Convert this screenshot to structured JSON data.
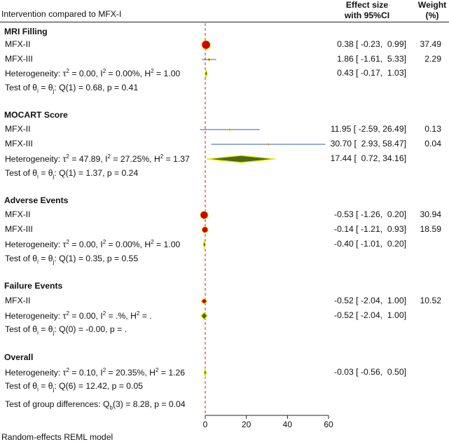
{
  "header": {
    "left": "Intervention compared to MFX-I",
    "effect_line1": "Effect size",
    "effect_line2": "with 95%CI",
    "weight_line1": "Weight",
    "weight_line2": "(%)"
  },
  "rows": [
    {
      "type": "group",
      "label": "MRI Filling"
    },
    {
      "type": "study",
      "label": "MFX-II",
      "es": "0.38 [ -0.23,  0.99]",
      "weight": "37.49"
    },
    {
      "type": "study",
      "label": "MFX-III",
      "es": "1.86 [ -1.61,  5.33]",
      "weight": "2.29"
    },
    {
      "type": "het",
      "label": "Heterogeneity: τ² = 0.00, I² = 0.00%, H² = 1.00",
      "es": "0.43 [ -0.17,  1.03]"
    },
    {
      "type": "test",
      "label": "Test of θi = θj: Q(1) = 0.68, p = 0.41"
    },
    {
      "type": "group",
      "label": "MOCART Score"
    },
    {
      "type": "study",
      "label": "MFX-II",
      "es": "11.95 [ -2.59, 26.49]",
      "weight": "0.13"
    },
    {
      "type": "study",
      "label": "MFX-III",
      "es": "30.70 [  2.93, 58.47]",
      "weight": "0.04"
    },
    {
      "type": "het",
      "label": "Heterogeneity: τ² = 47.89, I² = 27.25%, H² = 1.37",
      "es": "17.44 [  0.72, 34.16]"
    },
    {
      "type": "test",
      "label": "Test of θi = θj: Q(1) = 1.37, p = 0.24"
    },
    {
      "type": "group",
      "label": "Adverse Events"
    },
    {
      "type": "study",
      "label": "MFX-II",
      "es": "-0.53 [ -1.26,  0.20]",
      "weight": "30.94"
    },
    {
      "type": "study",
      "label": "MFX-III",
      "es": "-0.14 [ -1.21,  0.93]",
      "weight": "18.59"
    },
    {
      "type": "het",
      "label": "Heterogeneity: τ² = 0.00, I² = 0.00%, H² = 1.00",
      "es": "-0.40 [ -1.01,  0.20]"
    },
    {
      "type": "test",
      "label": "Test of θi = θj: Q(1) = 0.35, p = 0.55"
    },
    {
      "type": "group",
      "label": "Failure Events"
    },
    {
      "type": "study",
      "label": "MFX-II",
      "es": "-0.52 [ -2.04,  1.00]",
      "weight": "10.52"
    },
    {
      "type": "het",
      "label": "Heterogeneity: τ² = 0.00, I² = .%, H² = .",
      "es": "-0.52 [ -2.04,  1.00]"
    },
    {
      "type": "test",
      "label": "Test of θi = θj: Q(0) = -0.00, p = ."
    },
    {
      "type": "group",
      "label": "Overall"
    },
    {
      "type": "het",
      "label": "Heterogeneity: τ² = 0.10, I² = 20.35%, H² = 1.26",
      "es": "-0.03 [ -0.56,  0.50]"
    },
    {
      "type": "test",
      "label": "Test of θi = θj: Q(6) = 12.42, p = 0.05"
    },
    {
      "type": "test",
      "label": "Test of group differences: Qb(3) = 8.28, p = 0.04"
    }
  ],
  "footnote": "Random-effects REML model",
  "colors": {
    "marker": "#cc0000",
    "diamond": "#4a6b18",
    "diamond_outline": "#e8e800",
    "ci_line": "#2e5fa8",
    "ref_line": "#cc2222"
  },
  "chart_data": {
    "type": "forest",
    "title": "Intervention compared to MFX-I",
    "xlim": [
      0,
      60
    ],
    "xticks": [
      0,
      20,
      40,
      60
    ],
    "series": [
      {
        "name": "MRI Filling",
        "studies": [
          {
            "label": "MFX-II",
            "es": 0.38,
            "lo": -0.23,
            "hi": 0.99,
            "weight": 37.49
          },
          {
            "label": "MFX-III",
            "es": 1.86,
            "lo": -1.61,
            "hi": 5.33,
            "weight": 2.29
          }
        ],
        "pooled": {
          "es": 0.43,
          "lo": -0.17,
          "hi": 1.03
        }
      },
      {
        "name": "MOCART Score",
        "studies": [
          {
            "label": "MFX-II",
            "es": 11.95,
            "lo": -2.59,
            "hi": 26.49,
            "weight": 0.13
          },
          {
            "label": "MFX-III",
            "es": 30.7,
            "lo": 2.93,
            "hi": 58.47,
            "weight": 0.04
          }
        ],
        "pooled": {
          "es": 17.44,
          "lo": 0.72,
          "hi": 34.16
        }
      },
      {
        "name": "Adverse Events",
        "studies": [
          {
            "label": "MFX-II",
            "es": -0.53,
            "lo": -1.26,
            "hi": 0.2,
            "weight": 30.94
          },
          {
            "label": "MFX-III",
            "es": -0.14,
            "lo": -1.21,
            "hi": 0.93,
            "weight": 18.59
          }
        ],
        "pooled": {
          "es": -0.4,
          "lo": -1.01,
          "hi": 0.2
        }
      },
      {
        "name": "Failure Events",
        "studies": [
          {
            "label": "MFX-II",
            "es": -0.52,
            "lo": -2.04,
            "hi": 1.0,
            "weight": 10.52
          }
        ],
        "pooled": {
          "es": -0.52,
          "lo": -2.04,
          "hi": 1.0
        }
      },
      {
        "name": "Overall",
        "studies": [],
        "pooled": {
          "es": -0.03,
          "lo": -0.56,
          "hi": 0.5
        }
      }
    ],
    "reference_line": 0
  }
}
